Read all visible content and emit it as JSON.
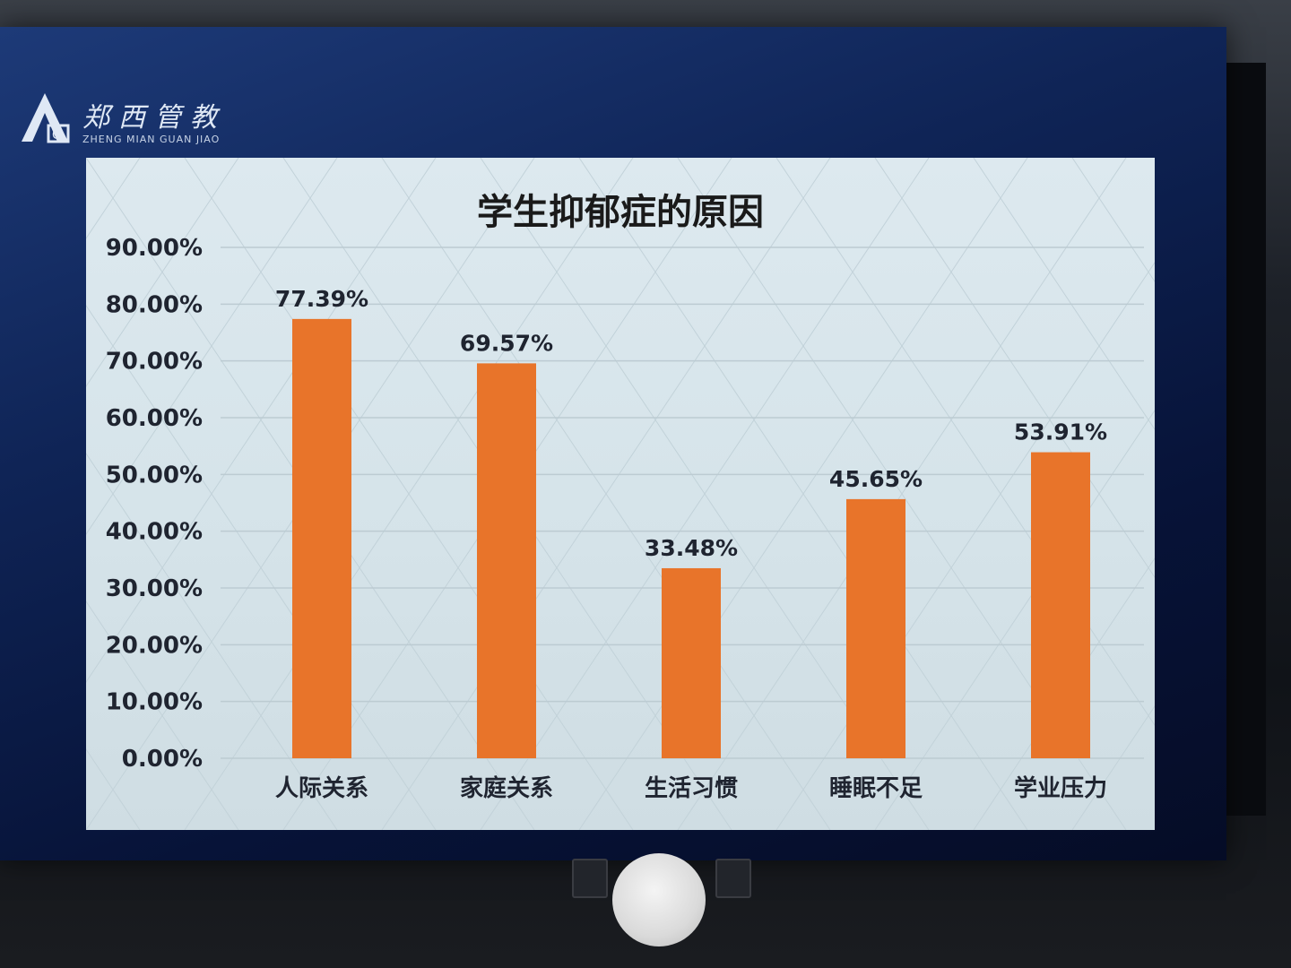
{
  "header": {
    "logo_cn": "郑西管教",
    "logo_en": "ZHENG MIAN GUAN JIAO"
  },
  "chart_data": {
    "type": "bar",
    "title": "学生抑郁症的原因",
    "categories": [
      "人际关系",
      "家庭关系",
      "生活习惯",
      "睡眠不足",
      "学业压力"
    ],
    "values": [
      77.39,
      69.57,
      33.48,
      45.65,
      53.91
    ],
    "data_labels": [
      "77.39%",
      "69.57%",
      "33.48%",
      "45.65%",
      "53.91%"
    ],
    "ylim": [
      0,
      90
    ],
    "yticks": [
      "0.00%",
      "10.00%",
      "20.00%",
      "30.00%",
      "40.00%",
      "50.00%",
      "60.00%",
      "70.00%",
      "80.00%",
      "90.00%"
    ],
    "xlabel": "",
    "ylabel": "",
    "grid": true,
    "bar_color": "#e8742a"
  }
}
